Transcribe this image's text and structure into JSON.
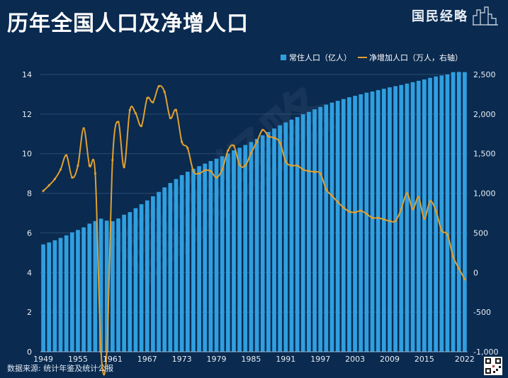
{
  "header": {
    "title": "历年全国人口及净增人口",
    "brand": "国民经略"
  },
  "footer": {
    "source": "数据来源: 统计年鉴及统计公报"
  },
  "colors": {
    "background": "#0a2a4f",
    "bar": "#2f9fe0",
    "line": "#e0a030",
    "grid": "#2b4d73"
  },
  "chart_data": {
    "type": "bar",
    "title": "历年全国人口及净增人口",
    "xlabel": "",
    "ylabel": "",
    "legend_position": "top-right",
    "grid": true,
    "x": [
      1949,
      1950,
      1951,
      1952,
      1953,
      1954,
      1955,
      1956,
      1957,
      1958,
      1959,
      1960,
      1961,
      1962,
      1963,
      1964,
      1965,
      1966,
      1967,
      1968,
      1969,
      1970,
      1971,
      1972,
      1973,
      1974,
      1975,
      1976,
      1977,
      1978,
      1979,
      1980,
      1981,
      1982,
      1983,
      1984,
      1985,
      1986,
      1987,
      1988,
      1989,
      1990,
      1991,
      1992,
      1993,
      1994,
      1995,
      1996,
      1997,
      1998,
      1999,
      2000,
      2001,
      2002,
      2003,
      2004,
      2005,
      2006,
      2007,
      2008,
      2009,
      2010,
      2011,
      2012,
      2013,
      2014,
      2015,
      2016,
      2017,
      2018,
      2019,
      2020,
      2021,
      2022
    ],
    "xtick_labels": [
      "1949",
      "1955",
      "1961",
      "1967",
      "1973",
      "1979",
      "1985",
      "1991",
      "1997",
      "2003",
      "2009",
      "2015",
      "2022"
    ],
    "xtick_years": [
      1949,
      1955,
      1961,
      1967,
      1973,
      1979,
      1985,
      1991,
      1997,
      2003,
      2009,
      2015,
      2022
    ],
    "y_left": {
      "range": [
        0,
        14
      ],
      "ticks": [
        0,
        2,
        4,
        6,
        8,
        10,
        12,
        14
      ],
      "tick_labels": [
        "0",
        "2",
        "4",
        "6",
        "8",
        "10",
        "12",
        "14"
      ]
    },
    "y_right": {
      "range": [
        -1000,
        2500
      ],
      "ticks": [
        -1000,
        -500,
        0,
        500,
        1000,
        1500,
        2000,
        2500
      ],
      "tick_labels": [
        "-1,000",
        "-500",
        "0",
        "500",
        "1,000",
        "1,500",
        "2,000",
        "2,500"
      ]
    },
    "series": [
      {
        "name": "常住人口（亿人）",
        "type": "bar",
        "axis": "left",
        "values": [
          5.42,
          5.52,
          5.63,
          5.75,
          5.88,
          6.03,
          6.15,
          6.28,
          6.47,
          6.6,
          6.72,
          6.62,
          6.59,
          6.73,
          6.92,
          7.05,
          7.25,
          7.45,
          7.64,
          7.85,
          8.07,
          8.3,
          8.52,
          8.72,
          8.92,
          9.09,
          9.24,
          9.37,
          9.5,
          9.63,
          9.75,
          9.87,
          10.01,
          10.17,
          10.3,
          10.44,
          10.59,
          10.75,
          10.93,
          11.1,
          11.27,
          11.43,
          11.58,
          11.72,
          11.85,
          11.99,
          12.11,
          12.24,
          12.36,
          12.48,
          12.58,
          12.67,
          12.76,
          12.85,
          12.92,
          13.0,
          13.08,
          13.14,
          13.21,
          13.28,
          13.35,
          13.41,
          13.47,
          13.54,
          13.61,
          13.68,
          13.75,
          13.83,
          13.9,
          13.95,
          14.0,
          14.12,
          14.13,
          14.12
        ]
      },
      {
        "name": "净增加人口（万人，右轴）",
        "type": "line",
        "axis": "right",
        "values": [
          1030,
          1100,
          1180,
          1300,
          1480,
          1200,
          1350,
          1820,
          1350,
          1250,
          -1000,
          -1000,
          1420,
          1900,
          1330,
          2050,
          2010,
          1850,
          2200,
          2150,
          2350,
          2280,
          1950,
          2050,
          1650,
          1570,
          1280,
          1250,
          1290,
          1280,
          1200,
          1300,
          1540,
          1600,
          1360,
          1350,
          1510,
          1650,
          1800,
          1720,
          1700,
          1640,
          1400,
          1350,
          1350,
          1300,
          1280,
          1270,
          1250,
          1050,
          970,
          890,
          820,
          770,
          760,
          780,
          740,
          690,
          690,
          670,
          650,
          650,
          800,
          1000,
          800,
          950,
          680,
          900,
          780,
          530,
          480,
          200,
          50,
          -85
        ]
      }
    ]
  }
}
